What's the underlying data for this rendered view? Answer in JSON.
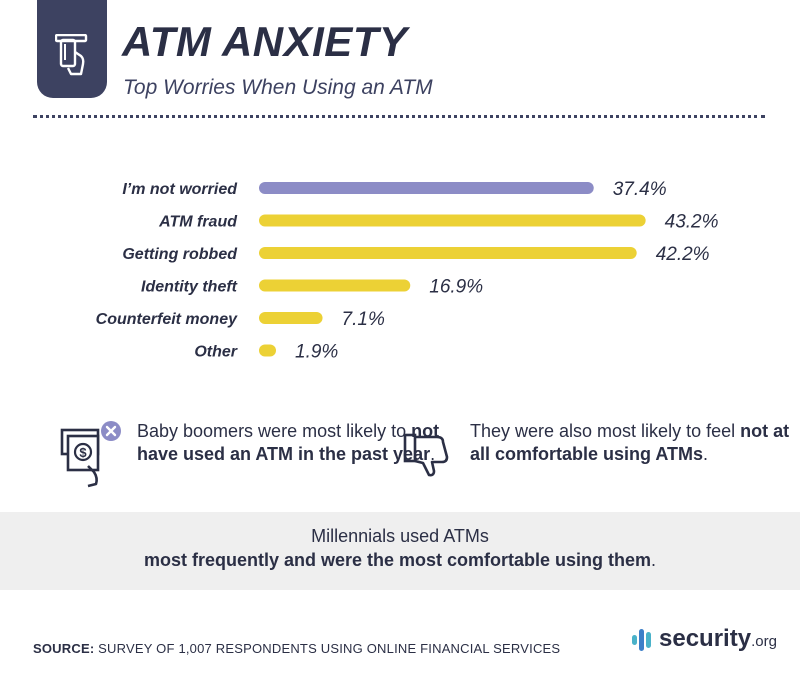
{
  "header": {
    "title": "ATM ANXIETY",
    "subtitle": "Top Worries When Using an ATM",
    "icon": "atm-card-hand-icon"
  },
  "chart_data": {
    "type": "bar",
    "orientation": "horizontal",
    "title": "ATM ANXIETY",
    "subtitle": "Top Worries When Using an ATM",
    "categories": [
      "I’m not worried",
      "ATM fraud",
      "Getting robbed",
      "Identity theft",
      "Counterfeit money",
      "Other"
    ],
    "values": [
      37.4,
      43.2,
      42.2,
      16.9,
      7.1,
      1.9
    ],
    "value_labels": [
      "37.4%",
      "43.2%",
      "42.2%",
      "16.9%",
      "7.1%",
      "1.9%"
    ],
    "unit": "%",
    "colors": [
      "#8c8cc6",
      "#ecd135",
      "#ecd135",
      "#ecd135",
      "#ecd135",
      "#ecd135"
    ],
    "grid": false,
    "legend": "none"
  },
  "facts": {
    "left": {
      "icon": "cash-x-icon",
      "pre": "Baby boomers were most likely to ",
      "bold": "not have used an ATM in the past year",
      "post": "."
    },
    "right": {
      "icon": "thumbs-down-icon",
      "pre": "They were also most likely to feel ",
      "bold": "not at all comfortable using ATMs",
      "post": "."
    }
  },
  "banner": {
    "line1": "Millennials used ATMs",
    "line2_bold": "most frequently and were the most comfortable using them",
    "line2_post": "."
  },
  "footer": {
    "source_label": "SOURCE:",
    "source_text": " SURVEY OF 1,007 RESPONDENTS USING ONLINE FINANCIAL SERVICES",
    "logo_text": "security",
    "logo_tld": ".org"
  }
}
